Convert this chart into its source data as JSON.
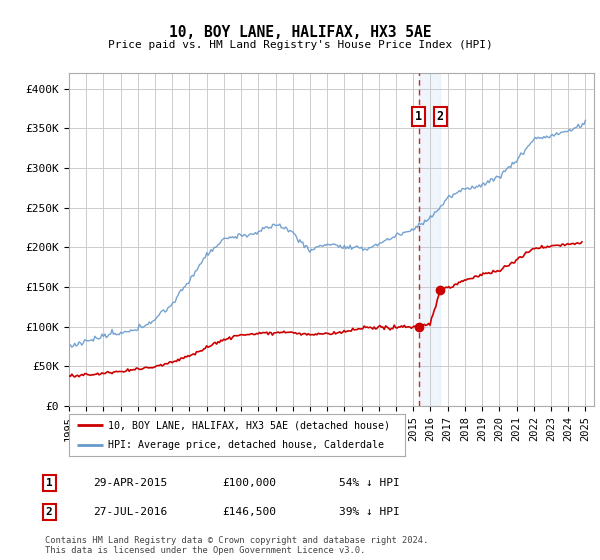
{
  "title": "10, BOY LANE, HALIFAX, HX3 5AE",
  "subtitle": "Price paid vs. HM Land Registry's House Price Index (HPI)",
  "ylabel_ticks": [
    "£0",
    "£50K",
    "£100K",
    "£150K",
    "£200K",
    "£250K",
    "£300K",
    "£350K",
    "£400K"
  ],
  "ytick_values": [
    0,
    50000,
    100000,
    150000,
    200000,
    250000,
    300000,
    350000,
    400000
  ],
  "ylim": [
    0,
    420000
  ],
  "xlim_start": 1995.0,
  "xlim_end": 2025.5,
  "red_color": "#cc0000",
  "blue_color": "#6699cc",
  "shade_color": "#aaccee",
  "vline_color": "#cc0000",
  "marker1_date": 2015.32,
  "marker1_price": 100000,
  "marker2_date": 2016.57,
  "marker2_price": 146500,
  "legend_label_red": "10, BOY LANE, HALIFAX, HX3 5AE (detached house)",
  "legend_label_blue": "HPI: Average price, detached house, Calderdale",
  "sale1_label": "1",
  "sale1_date_str": "29-APR-2015",
  "sale1_price_str": "£100,000",
  "sale1_pct_str": "54% ↓ HPI",
  "sale2_label": "2",
  "sale2_date_str": "27-JUL-2016",
  "sale2_price_str": "£146,500",
  "sale2_pct_str": "39% ↓ HPI",
  "footnote": "Contains HM Land Registry data © Crown copyright and database right 2024.\nThis data is licensed under the Open Government Licence v3.0.",
  "background_color": "#ffffff",
  "grid_color": "#cccccc",
  "xtick_years": [
    1995,
    1996,
    1997,
    1998,
    1999,
    2000,
    2001,
    2002,
    2003,
    2004,
    2005,
    2006,
    2007,
    2008,
    2009,
    2010,
    2011,
    2012,
    2013,
    2014,
    2015,
    2016,
    2017,
    2018,
    2019,
    2020,
    2021,
    2022,
    2023,
    2024,
    2025
  ]
}
